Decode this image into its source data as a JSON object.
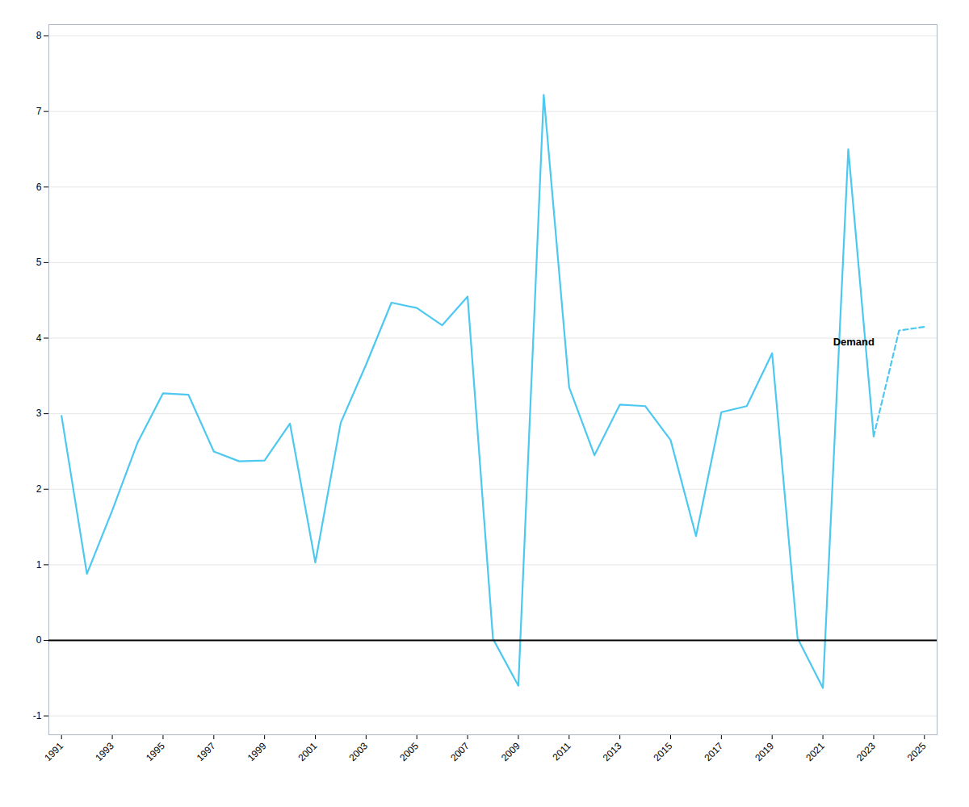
{
  "chart_data": {
    "type": "line",
    "x": [
      1991,
      1992,
      1993,
      1994,
      1995,
      1996,
      1997,
      1998,
      1999,
      2000,
      2001,
      2002,
      2003,
      2004,
      2005,
      2006,
      2007,
      2008,
      2009,
      2010,
      2011,
      2012,
      2013,
      2014,
      2015,
      2016,
      2017,
      2018,
      2019,
      2020,
      2021,
      2022,
      2023,
      2024,
      2025
    ],
    "series": [
      {
        "color": "#4DC8F0",
        "line_style": "solid",
        "values": [
          2.97,
          0.88,
          1.72,
          2.62,
          3.27,
          3.25,
          2.5,
          2.37,
          2.38,
          2.87,
          1.03,
          2.88,
          3.65,
          4.47,
          4.4,
          4.17,
          4.55,
          0.02,
          -0.6,
          7.22,
          3.35,
          2.45,
          3.12,
          3.1,
          2.65,
          1.38,
          3.02,
          3.1,
          3.8,
          0.03,
          -0.63,
          6.5,
          2.7,
          null,
          null
        ]
      },
      {
        "color": "#4DC8F0",
        "line_style": "dashed",
        "values": [
          null,
          null,
          null,
          null,
          null,
          null,
          null,
          null,
          null,
          null,
          null,
          null,
          null,
          null,
          null,
          null,
          null,
          null,
          null,
          null,
          null,
          null,
          null,
          null,
          null,
          null,
          null,
          null,
          null,
          null,
          null,
          null,
          2.7,
          4.1,
          4.15
        ]
      }
    ],
    "xlim": [
      1990.5,
      2025.5
    ],
    "ylim": [
      -1.25,
      8.15
    ],
    "xticks": [
      1991,
      1993,
      1995,
      1997,
      1999,
      2001,
      2003,
      2005,
      2007,
      2009,
      2011,
      2013,
      2015,
      2017,
      2019,
      2021,
      2023,
      2025
    ],
    "yticks": [
      -1,
      0,
      1,
      2,
      3,
      4,
      5,
      6,
      7,
      8
    ],
    "grid": true,
    "annotations": [
      {
        "text": "Demand",
        "x": 2021.4,
        "y": 3.95
      }
    ]
  }
}
